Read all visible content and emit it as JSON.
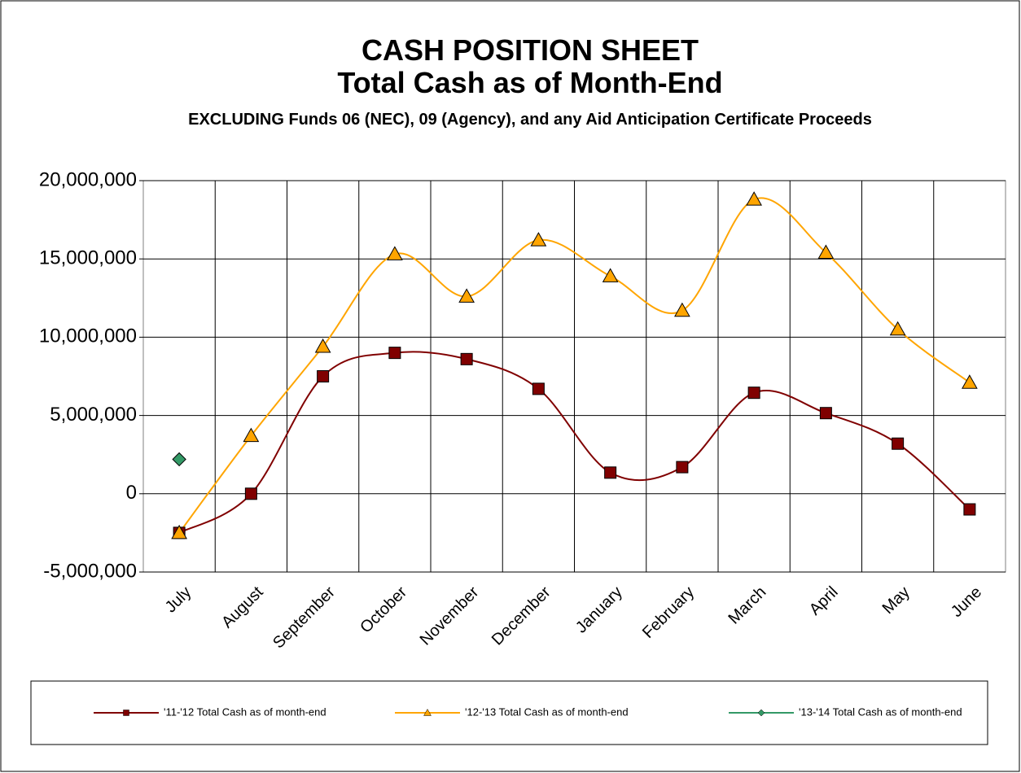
{
  "chart_data": {
    "type": "line",
    "title": "CASH POSITION SHEET",
    "subtitle": "Total Cash as of Month-End",
    "note": "EXCLUDING Funds 06 (NEC), 09 (Agency), and any Aid Anticipation Certificate Proceeds",
    "categories": [
      "July",
      "August",
      "September",
      "October",
      "November",
      "December",
      "January",
      "February",
      "March",
      "April",
      "May",
      "June"
    ],
    "series": [
      {
        "name": "'11-'12 Total Cash as of month-end",
        "color": "#800000",
        "marker": "square",
        "values": [
          -2500000,
          0,
          7500000,
          9000000,
          8600000,
          6700000,
          1350000,
          1700000,
          6450000,
          5150000,
          3200000,
          -1000000
        ]
      },
      {
        "name": "'12-'13 Total Cash as of month-end",
        "color": "#ffa500",
        "marker": "triangle",
        "values": [
          -2500000,
          3700000,
          9400000,
          15300000,
          12600000,
          16200000,
          13900000,
          11700000,
          18800000,
          15400000,
          10500000,
          7100000
        ]
      },
      {
        "name": "'13-'14 Total Cash as of month-end",
        "color": "#339966",
        "marker": "diamond",
        "values": [
          2200000,
          null,
          null,
          null,
          null,
          null,
          null,
          null,
          null,
          null,
          null,
          null
        ]
      }
    ],
    "ylim": [
      -5000000,
      20000000
    ],
    "yticks": [
      {
        "value": -5000000,
        "label": "-5,000,000"
      },
      0,
      {
        "value": 5000000,
        "label": "5,000,000"
      },
      {
        "value": 10000000,
        "label": "10,000,000"
      },
      {
        "value": 15000000,
        "label": "15,000,000"
      },
      {
        "value": 20000000,
        "label": "20,000,000"
      }
    ],
    "grid": true,
    "smooth": true,
    "legend": "bottom"
  }
}
